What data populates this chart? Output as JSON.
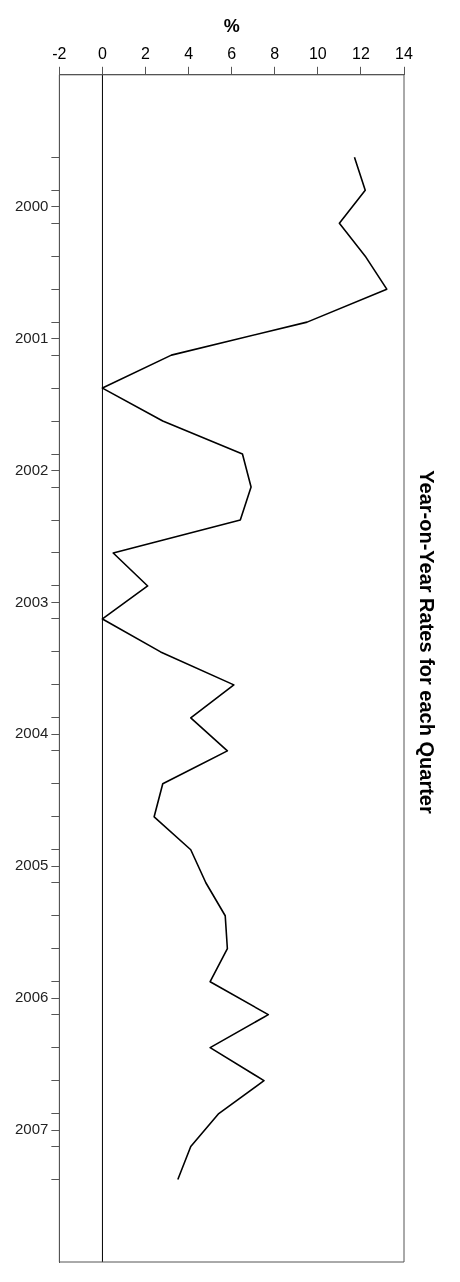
{
  "chart_data": {
    "type": "line",
    "orientation": "horizontal",
    "title": "Year-on-Year Rates for each Quarter",
    "xlabel": "%",
    "x": [
      1999.625,
      1999.875,
      2000.125,
      2000.375,
      2000.625,
      2000.875,
      2001.125,
      2001.375,
      2001.625,
      2001.875,
      2002.125,
      2002.375,
      2002.625,
      2002.875,
      2003.125,
      2003.375,
      2003.625,
      2003.875,
      2004.125,
      2004.375,
      2004.625,
      2004.875,
      2005.125,
      2005.375,
      2005.625,
      2005.875,
      2006.125,
      2006.375,
      2006.625,
      2006.875,
      2007.125,
      2007.375
    ],
    "series": [
      {
        "color": "#000000",
        "values": [
          11.7,
          12.2,
          11.0,
          12.2,
          13.2,
          9.5,
          3.2,
          0.0,
          2.8,
          6.5,
          6.9,
          6.4,
          0.5,
          2.1,
          0.0,
          2.7,
          6.1,
          4.1,
          5.8,
          2.8,
          2.4,
          4.1,
          4.8,
          5.7,
          5.8,
          5.0,
          7.7,
          5.0,
          7.5,
          5.4,
          4.1,
          3.5
        ]
      }
    ],
    "ylim": [
      2008,
      1999
    ],
    "yticks": [
      {
        "value": 1999.625,
        "label": null
      },
      {
        "value": 1999.875,
        "label": null
      },
      {
        "value": 2000,
        "label": "2000"
      },
      {
        "value": 2000.125,
        "label": null
      },
      {
        "value": 2000.375,
        "label": null
      },
      {
        "value": 2000.625,
        "label": null
      },
      {
        "value": 2000.875,
        "label": null
      },
      {
        "value": 2001,
        "label": "2001"
      },
      {
        "value": 2001.125,
        "label": null
      },
      {
        "value": 2001.375,
        "label": null
      },
      {
        "value": 2001.625,
        "label": null
      },
      {
        "value": 2001.875,
        "label": null
      },
      {
        "value": 2002,
        "label": "2002"
      },
      {
        "value": 2002.125,
        "label": null
      },
      {
        "value": 2002.375,
        "label": null
      },
      {
        "value": 2002.625,
        "label": null
      },
      {
        "value": 2002.875,
        "label": null
      },
      {
        "value": 2003,
        "label": "2003"
      },
      {
        "value": 2003.125,
        "label": null
      },
      {
        "value": 2003.375,
        "label": null
      },
      {
        "value": 2003.625,
        "label": null
      },
      {
        "value": 2003.875,
        "label": null
      },
      {
        "value": 2004,
        "label": "2004"
      },
      {
        "value": 2004.125,
        "label": null
      },
      {
        "value": 2004.375,
        "label": null
      },
      {
        "value": 2004.625,
        "label": null
      },
      {
        "value": 2004.875,
        "label": null
      },
      {
        "value": 2005,
        "label": "2005"
      },
      {
        "value": 2005.125,
        "label": null
      },
      {
        "value": 2005.375,
        "label": null
      },
      {
        "value": 2005.625,
        "label": null
      },
      {
        "value": 2005.875,
        "label": null
      },
      {
        "value": 2006,
        "label": "2006"
      },
      {
        "value": 2006.125,
        "label": null
      },
      {
        "value": 2006.375,
        "label": null
      },
      {
        "value": 2006.625,
        "label": null
      },
      {
        "value": 2006.875,
        "label": null
      },
      {
        "value": 2007,
        "label": "2007"
      },
      {
        "value": 2007.125,
        "label": null
      },
      {
        "value": 2007.375,
        "label": null
      }
    ],
    "xlim": [
      -2,
      14
    ],
    "xticks": [
      -2,
      0,
      2,
      4,
      6,
      8,
      10,
      12,
      14
    ],
    "ref_lines": [
      {
        "axis": "x",
        "value": 0,
        "color": "#000000"
      }
    ],
    "grid": false,
    "marker": "none",
    "line_style": "solid"
  }
}
